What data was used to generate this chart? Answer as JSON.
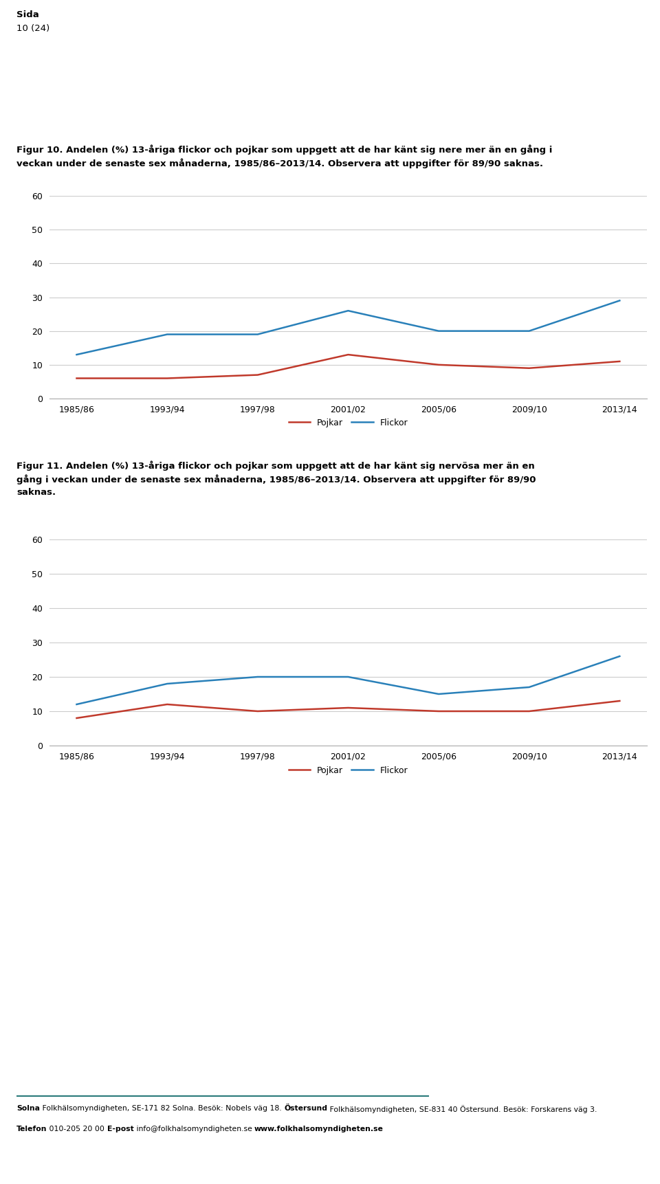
{
  "page_header": "Sida",
  "page_number": "10 (24)",
  "fig10_title_line1": "Figur 10. Andelen (%) 13-åriga flickor och pojkar som uppgett att de har känt sig nere mer än en gång i",
  "fig10_title_line2": "veckan under de senaste sex månaderna, 1985/86–2013/14. Observera att uppgifter för 89/90 saknas.",
  "fig11_title_line1": "Figur 11. Andelen (%) 13-åriga flickor och pojkar som uppgett att de har känt sig nervösa mer än en",
  "fig11_title_line2": "gång i veckan under de senaste sex månaderna, 1985/86–2013/14. Observera att uppgifter för 89/90",
  "fig11_title_line3": "saknas.",
  "x_labels": [
    "1985/86",
    "1993/94",
    "1997/98",
    "2001/02",
    "2005/06",
    "2009/10",
    "2013/14"
  ],
  "x_positions": [
    0,
    1,
    2,
    3,
    4,
    5,
    6
  ],
  "fig10_pojkar": [
    6,
    6,
    7,
    13,
    10,
    9,
    11
  ],
  "fig10_flickor": [
    13,
    19,
    19,
    26,
    20,
    20,
    29
  ],
  "fig11_pojkar": [
    8,
    12,
    10,
    11,
    10,
    10,
    13
  ],
  "fig11_flickor": [
    12,
    18,
    20,
    20,
    15,
    17,
    26
  ],
  "pojkar_color": "#c0392b",
  "flickor_color": "#2980b9",
  "ylim_min": 0,
  "ylim_max": 60,
  "yticks": [
    0,
    10,
    20,
    30,
    40,
    50,
    60
  ],
  "line_width": 1.8,
  "legend_pojkar": "Pojkar",
  "legend_flickor": "Flickor",
  "bg_color": "#ffffff",
  "grid_color": "#cccccc",
  "tick_fontsize": 9,
  "title_fontsize": 9.5,
  "legend_fontsize": 9,
  "footer_teal": "#2a7a7a",
  "footer_fs": 7.8,
  "footer_texts_line1": [
    [
      "Solna",
      true
    ],
    [
      " Folkhälsomyndigheten, SE-171 82 Solna. Besök: Nobels väg 18. ",
      false
    ],
    [
      "Östersund",
      true
    ],
    [
      " Folkhälsomyndigheten, SE-831 40 Östersund. Besök: Forskarens väg 3.",
      false
    ]
  ],
  "footer_texts_line2": [
    [
      "Telefon",
      true
    ],
    [
      " 010-205 20 00 ",
      false
    ],
    [
      "E-post",
      true
    ],
    [
      " info@folkhalsomyndigheten.se ",
      false
    ],
    [
      "www.folkhalsomyndigheten.se",
      true
    ]
  ]
}
